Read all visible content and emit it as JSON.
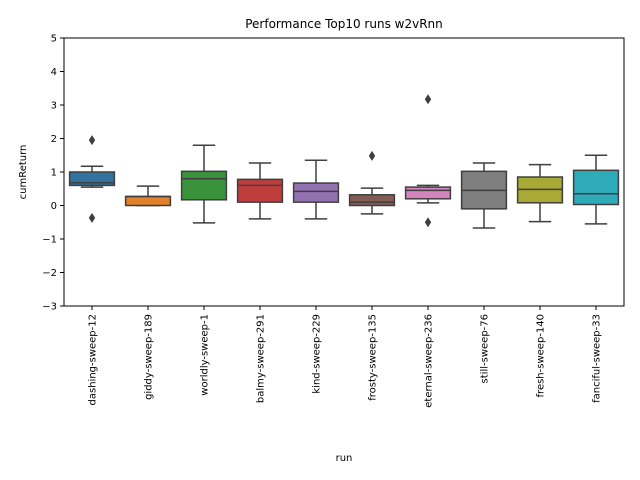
{
  "chart_data": {
    "type": "box",
    "title": "Performance Top10 runs w2vRnn",
    "xlabel": "run",
    "ylabel": "cumReturn",
    "ylim": [
      -3,
      5
    ],
    "yticks": [
      -3,
      -2,
      -1,
      0,
      1,
      2,
      3,
      4,
      5
    ],
    "grid": false,
    "categories": [
      "dashing-sweep-12",
      "giddy-sweep-189",
      "worldly-sweep-1",
      "balmy-sweep-291",
      "kind-sweep-229",
      "frosty-sweep-135",
      "eternal-sweep-236",
      "still-sweep-76",
      "fresh-sweep-140",
      "fanciful-sweep-33"
    ],
    "boxes": [
      {
        "color": "#3274a1",
        "whisker_low": 0.55,
        "q1": 0.6,
        "median": 0.68,
        "q3": 1.0,
        "whisker_high": 1.17,
        "outliers": [
          1.95,
          -0.37
        ]
      },
      {
        "color": "#e1812c",
        "whisker_low": 0.0,
        "q1": 0.0,
        "median": 0.27,
        "q3": 0.27,
        "whisker_high": 0.58,
        "outliers": []
      },
      {
        "color": "#3a923a",
        "whisker_low": -0.52,
        "q1": 0.17,
        "median": 0.8,
        "q3": 1.02,
        "whisker_high": 1.8,
        "outliers": []
      },
      {
        "color": "#c03d3e",
        "whisker_low": -0.4,
        "q1": 0.1,
        "median": 0.6,
        "q3": 0.78,
        "whisker_high": 1.27,
        "outliers": []
      },
      {
        "color": "#9372b2",
        "whisker_low": -0.4,
        "q1": 0.1,
        "median": 0.42,
        "q3": 0.67,
        "whisker_high": 1.35,
        "outliers": []
      },
      {
        "color": "#845b53",
        "whisker_low": -0.25,
        "q1": 0.0,
        "median": 0.1,
        "q3": 0.32,
        "whisker_high": 0.52,
        "outliers": [
          1.48
        ]
      },
      {
        "color": "#d684bd",
        "whisker_low": 0.08,
        "q1": 0.2,
        "median": 0.45,
        "q3": 0.55,
        "whisker_high": 0.6,
        "outliers": [
          3.17,
          -0.5
        ]
      },
      {
        "color": "#7f7f7f",
        "whisker_low": -0.67,
        "q1": -0.1,
        "median": 0.45,
        "q3": 1.02,
        "whisker_high": 1.27,
        "outliers": []
      },
      {
        "color": "#a9aa35",
        "whisker_low": -0.48,
        "q1": 0.08,
        "median": 0.48,
        "q3": 0.85,
        "whisker_high": 1.22,
        "outliers": []
      },
      {
        "color": "#2eabb8",
        "whisker_low": -0.55,
        "q1": 0.03,
        "median": 0.35,
        "q3": 1.05,
        "whisker_high": 1.5,
        "outliers": []
      }
    ]
  }
}
